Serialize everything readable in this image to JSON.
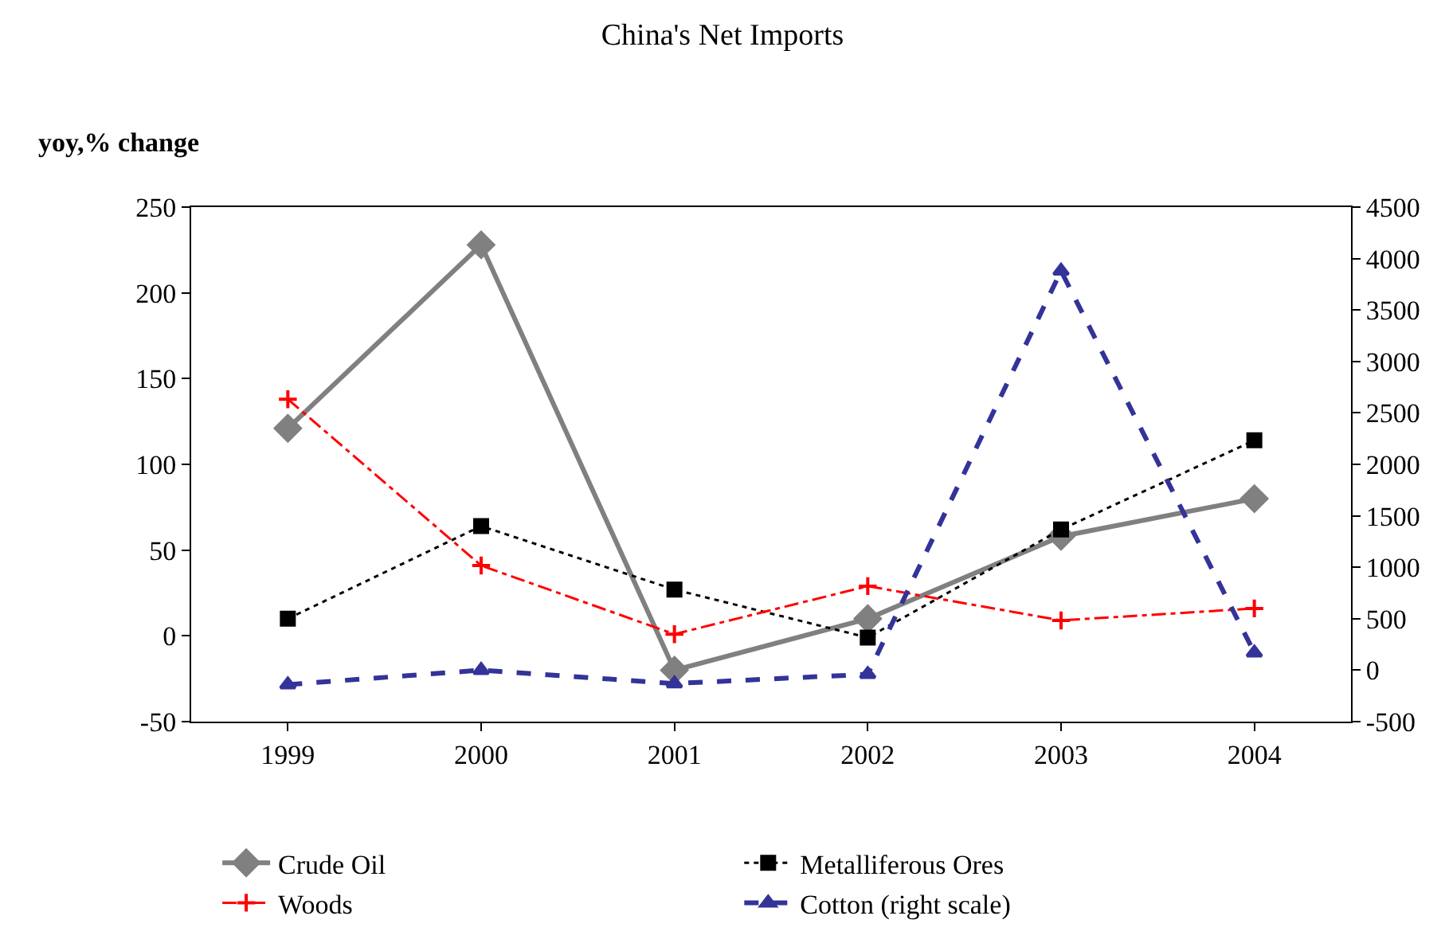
{
  "chart_data": {
    "type": "line",
    "title": "China's Net Imports",
    "ylabel": "yoy,% change",
    "categories": [
      "1999",
      "2000",
      "2001",
      "2002",
      "2003",
      "2004"
    ],
    "series": [
      {
        "name": "Crude Oil",
        "color": "#808080",
        "values": [
          121,
          228,
          -20,
          10,
          58,
          80
        ],
        "marker": "diamond",
        "line_style": "solid"
      },
      {
        "name": "Metalliferous Ores",
        "color": "#000000",
        "values": [
          10,
          64,
          27,
          -1,
          62,
          114
        ],
        "marker": "square",
        "line_style": "dotted"
      },
      {
        "name": "Woods",
        "color": "#ff0000",
        "values": [
          138,
          41,
          1,
          29,
          9,
          16
        ],
        "marker": "cross",
        "line_style": "dashdot"
      },
      {
        "name": "Cotton (right scale)",
        "color": "#333399",
        "values": [
          -140,
          0,
          -130,
          -40,
          3880,
          170
        ],
        "marker": "triangle",
        "line_style": "dashed",
        "axis": "y2"
      }
    ],
    "ylim": [
      -50,
      250
    ],
    "yticks": [
      -50,
      0,
      50,
      100,
      150,
      200,
      250
    ],
    "y2lim": [
      -500,
      4500
    ],
    "y2ticks": [
      -500,
      0,
      500,
      1000,
      1500,
      2000,
      2500,
      3000,
      3500,
      4000,
      4500
    ],
    "grid": false,
    "legend": "bottom"
  }
}
